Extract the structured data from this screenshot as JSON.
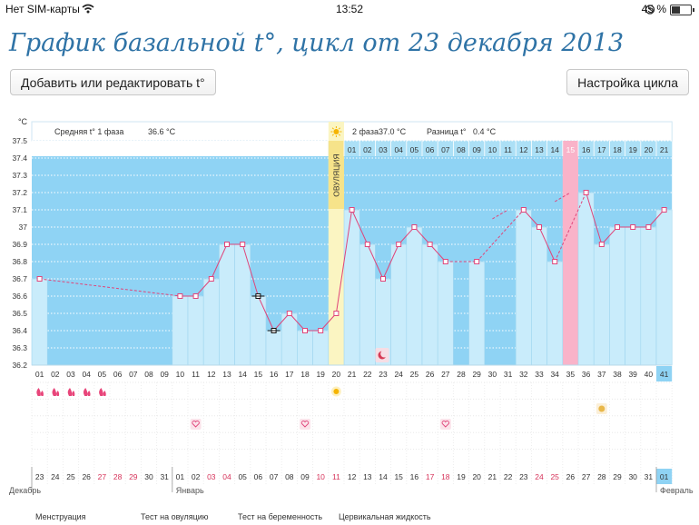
{
  "status_bar": {
    "carrier": "Нет SIM-карты",
    "time": "13:52",
    "battery": "45 %",
    "battery_level": 0.45,
    "icons": [
      "wifi-icon",
      "alarm-icon",
      "battery-icon"
    ]
  },
  "page_title": "График базальной t°, цикл от 23 декабря 2013",
  "buttons": {
    "add_edit": "Добавить или редактировать t°",
    "cycle_settings": "Настройка цикла"
  },
  "chart_data": {
    "type": "line",
    "y_unit": "°C",
    "ylim": [
      36.2,
      37.5
    ],
    "y_ticks": [
      "37.5",
      "37.4",
      "37.3",
      "37.2",
      "37.1",
      "37",
      "36.9",
      "36.8",
      "36.7",
      "36.6",
      "36.5",
      "36.4",
      "36.3",
      "36.2"
    ],
    "phase1_label": "Средняя t° 1 фаза",
    "phase1_value": "36.6 °C",
    "phase2_label": "2 фаза",
    "phase2_value": "37.0 °C",
    "diff_label": "Разница t°",
    "diff_value": "0.4 °C",
    "ovulation_label": "ОВУЛЯЦИЯ",
    "ovulation_day": 20,
    "highlight_day": 35,
    "current_day": 41,
    "cycle_days": [
      "01",
      "02",
      "03",
      "04",
      "05",
      "06",
      "07",
      "08",
      "09",
      "10",
      "11",
      "12",
      "13",
      "14",
      "15",
      "16",
      "17",
      "18",
      "19",
      "20",
      "21",
      "22",
      "23",
      "24",
      "25",
      "26",
      "27",
      "28",
      "29",
      "30",
      "31",
      "32",
      "33",
      "34",
      "35",
      "36",
      "37",
      "38",
      "39",
      "40",
      "41"
    ],
    "phase2_day_numbers": [
      "01",
      "02",
      "03",
      "04",
      "05",
      "06",
      "07",
      "08",
      "09",
      "10",
      "11",
      "12",
      "13",
      "14",
      "15",
      "16",
      "17",
      "18",
      "19",
      "20",
      "21"
    ],
    "temperatures": [
      36.7,
      null,
      null,
      null,
      null,
      null,
      null,
      null,
      null,
      36.6,
      36.6,
      36.7,
      36.9,
      36.9,
      36.6,
      36.4,
      36.5,
      36.4,
      36.4,
      36.5,
      37.1,
      36.9,
      36.7,
      36.9,
      37.0,
      36.9,
      36.8,
      null,
      36.8,
      null,
      null,
      37.1,
      37.0,
      36.8,
      null,
      37.2,
      36.9,
      37.0,
      37.0,
      37.0,
      37.1
    ],
    "dates": [
      "23",
      "24",
      "25",
      "26",
      "27",
      "28",
      "29",
      "30",
      "31",
      "01",
      "02",
      "03",
      "04",
      "05",
      "06",
      "07",
      "08",
      "09",
      "10",
      "11",
      "12",
      "13",
      "14",
      "15",
      "16",
      "17",
      "18",
      "19",
      "20",
      "21",
      "22",
      "23",
      "24",
      "25",
      "26",
      "27",
      "28",
      "29",
      "30",
      "31",
      "01"
    ],
    "weekend_days": [
      5,
      6,
      7,
      12,
      13,
      19,
      20,
      26,
      27,
      33,
      34
    ],
    "month_labels": [
      {
        "day": 1,
        "label": "Декабрь"
      },
      {
        "day": 10,
        "label": "Январь"
      },
      {
        "day": 41,
        "label": "Февраль"
      }
    ],
    "menstruation_days": [
      1,
      2,
      3,
      4,
      5
    ],
    "heart_days": [
      11,
      18,
      27
    ],
    "moon_day": 23,
    "sun_day": 20,
    "cervix_day": 37
  },
  "legend": {
    "items": [
      "Менструация",
      "Тест на овуляцию",
      "Тест на беременность",
      "Цервикальная жидкость"
    ]
  }
}
